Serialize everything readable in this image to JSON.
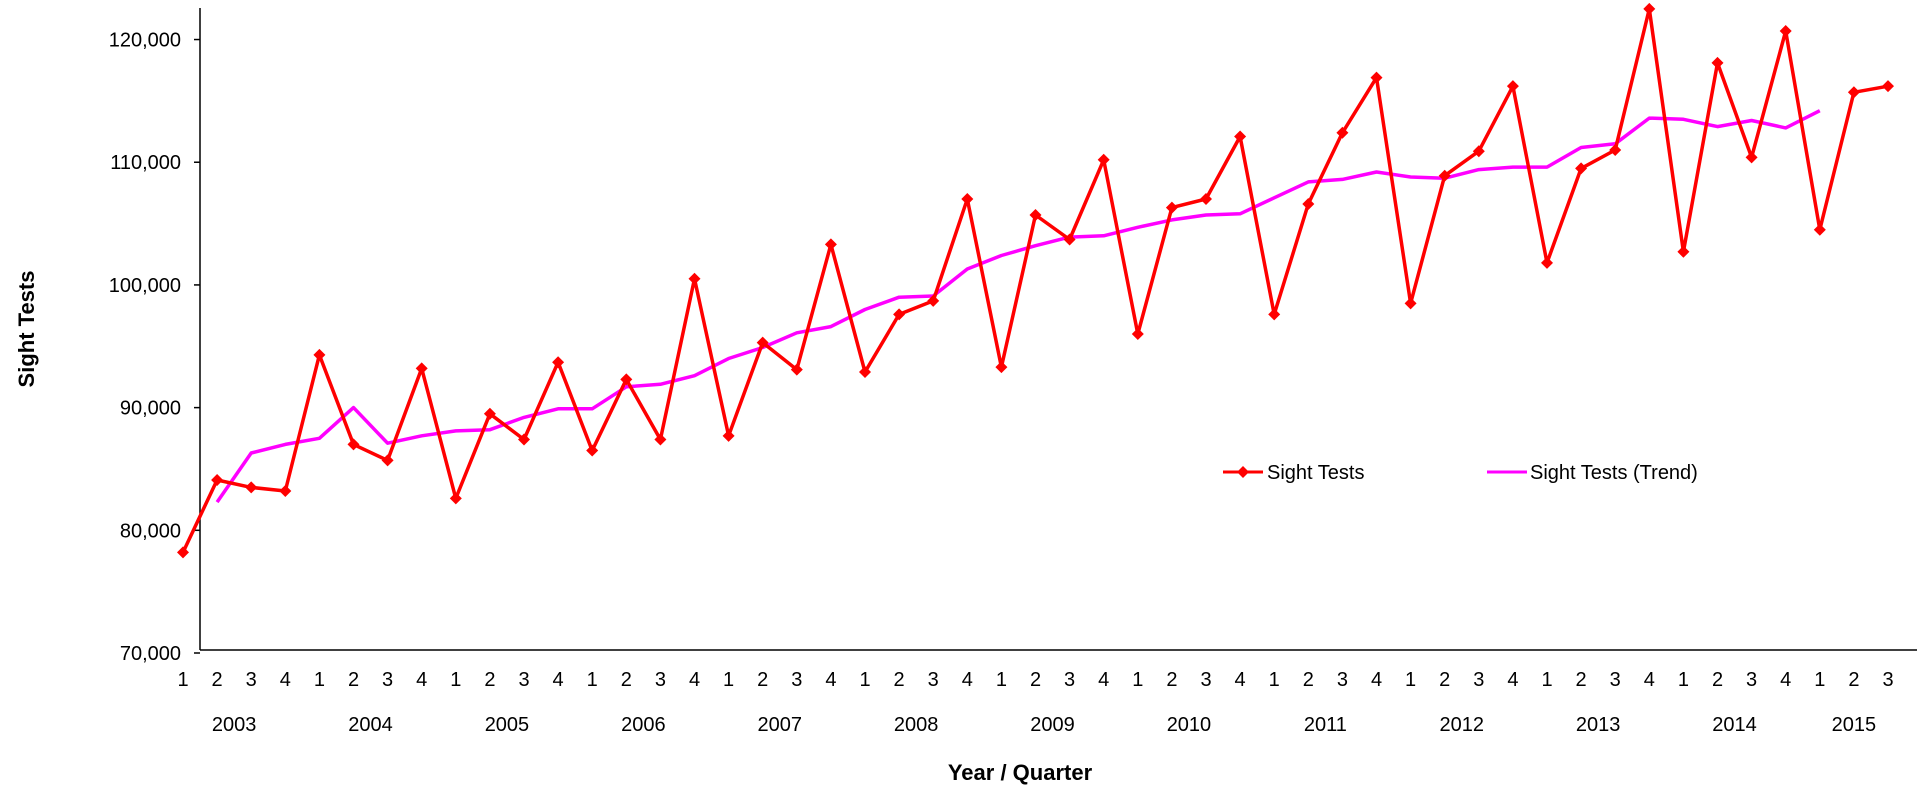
{
  "chart_data": {
    "type": "line",
    "xlabel": "Year / Quarter",
    "ylabel": "Sight Tests",
    "ylim": [
      70000,
      122000
    ],
    "y_ticks": [
      {
        "value": 70000,
        "label": "70,000"
      },
      {
        "value": 80000,
        "label": "80,000"
      },
      {
        "value": 90000,
        "label": "90,000"
      },
      {
        "value": 100000,
        "label": "100,000"
      },
      {
        "value": 110000,
        "label": "110,000"
      },
      {
        "value": 120000,
        "label": "120,000"
      }
    ],
    "categories": [
      "1",
      "2",
      "3",
      "4",
      "1",
      "2",
      "3",
      "4",
      "1",
      "2",
      "3",
      "4",
      "1",
      "2",
      "3",
      "4",
      "1",
      "2",
      "3",
      "4",
      "1",
      "2",
      "3",
      "4",
      "1",
      "2",
      "3",
      "4",
      "1",
      "2",
      "3",
      "4",
      "1",
      "2",
      "3",
      "4",
      "1",
      "2",
      "3",
      "4",
      "1",
      "2",
      "3",
      "4",
      "1",
      "2",
      "3",
      "4",
      "1",
      "2",
      "3"
    ],
    "years": [
      {
        "label": "2003",
        "first": 0,
        "last": 3
      },
      {
        "label": "2004",
        "first": 4,
        "last": 7
      },
      {
        "label": "2005",
        "first": 8,
        "last": 11
      },
      {
        "label": "2006",
        "first": 12,
        "last": 15
      },
      {
        "label": "2007",
        "first": 16,
        "last": 19
      },
      {
        "label": "2008",
        "first": 20,
        "last": 23
      },
      {
        "label": "2009",
        "first": 24,
        "last": 27
      },
      {
        "label": "2010",
        "first": 28,
        "last": 31
      },
      {
        "label": "2011",
        "first": 32,
        "last": 35
      },
      {
        "label": "2012",
        "first": 36,
        "last": 39
      },
      {
        "label": "2013",
        "first": 40,
        "last": 43
      },
      {
        "label": "2014",
        "first": 44,
        "last": 47
      },
      {
        "label": "2015",
        "first": 48,
        "last": 50
      }
    ],
    "series": [
      {
        "name": "Sight Tests",
        "color": "#ff0000",
        "marker": "diamond",
        "values": [
          78200,
          84100,
          83500,
          83200,
          94300,
          87000,
          85700,
          93200,
          82600,
          89500,
          87400,
          93700,
          86500,
          92300,
          87400,
          100500,
          87700,
          95300,
          93100,
          103300,
          92900,
          97600,
          98700,
          107000,
          93300,
          105700,
          103700,
          110200,
          96000,
          106300,
          107000,
          112100,
          97600,
          106600,
          112400,
          116900,
          98500,
          108900,
          110900,
          116200,
          101800,
          109500,
          111000,
          122500,
          102700,
          118100,
          110400,
          120700,
          104500,
          115700,
          116200
        ]
      },
      {
        "name": "Sight Tests (Trend)",
        "color": "#ff00ff",
        "values": [
          null,
          82300,
          86300,
          87000,
          87500,
          90000,
          87100,
          87700,
          88100,
          88200,
          89200,
          89900,
          89900,
          91700,
          91900,
          92600,
          94000,
          94900,
          96100,
          96600,
          98000,
          99000,
          99100,
          101300,
          102400,
          103200,
          103900,
          104000,
          104700,
          105300,
          105700,
          105800,
          107100,
          108400,
          108600,
          109200,
          108800,
          108700,
          109400,
          109600,
          109600,
          111200,
          111500,
          113600,
          113500,
          112900,
          113400,
          112800,
          114200,
          null,
          null
        ]
      }
    ],
    "legend_position": "center-right",
    "grid": false
  }
}
